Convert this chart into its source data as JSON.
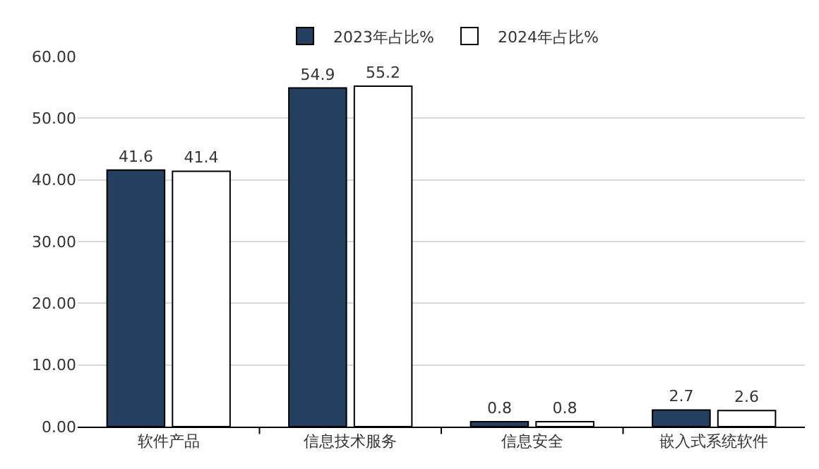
{
  "chart_data": {
    "type": "bar",
    "categories": [
      "软件产品",
      "信息技术服务",
      "信息安全",
      "嵌入式系统软件"
    ],
    "series": [
      {
        "name": "2023年占比%",
        "color": "#243f60",
        "values": [
          41.6,
          54.9,
          0.8,
          2.7
        ]
      },
      {
        "name": "2024年占比%",
        "color": "#ffffff",
        "values": [
          41.4,
          55.2,
          0.8,
          2.6
        ]
      }
    ],
    "ylim": [
      0,
      60
    ],
    "yticks": [
      {
        "value": 0,
        "label": "0.00"
      },
      {
        "value": 10,
        "label": "10.00"
      },
      {
        "value": 20,
        "label": "20.00"
      },
      {
        "value": 30,
        "label": "30.00"
      },
      {
        "value": 40,
        "label": "40.00"
      },
      {
        "value": 50,
        "label": "50.00"
      },
      {
        "value": 60,
        "label": "60.00"
      }
    ],
    "grid": "y",
    "legend": "top",
    "data_labels": true
  }
}
